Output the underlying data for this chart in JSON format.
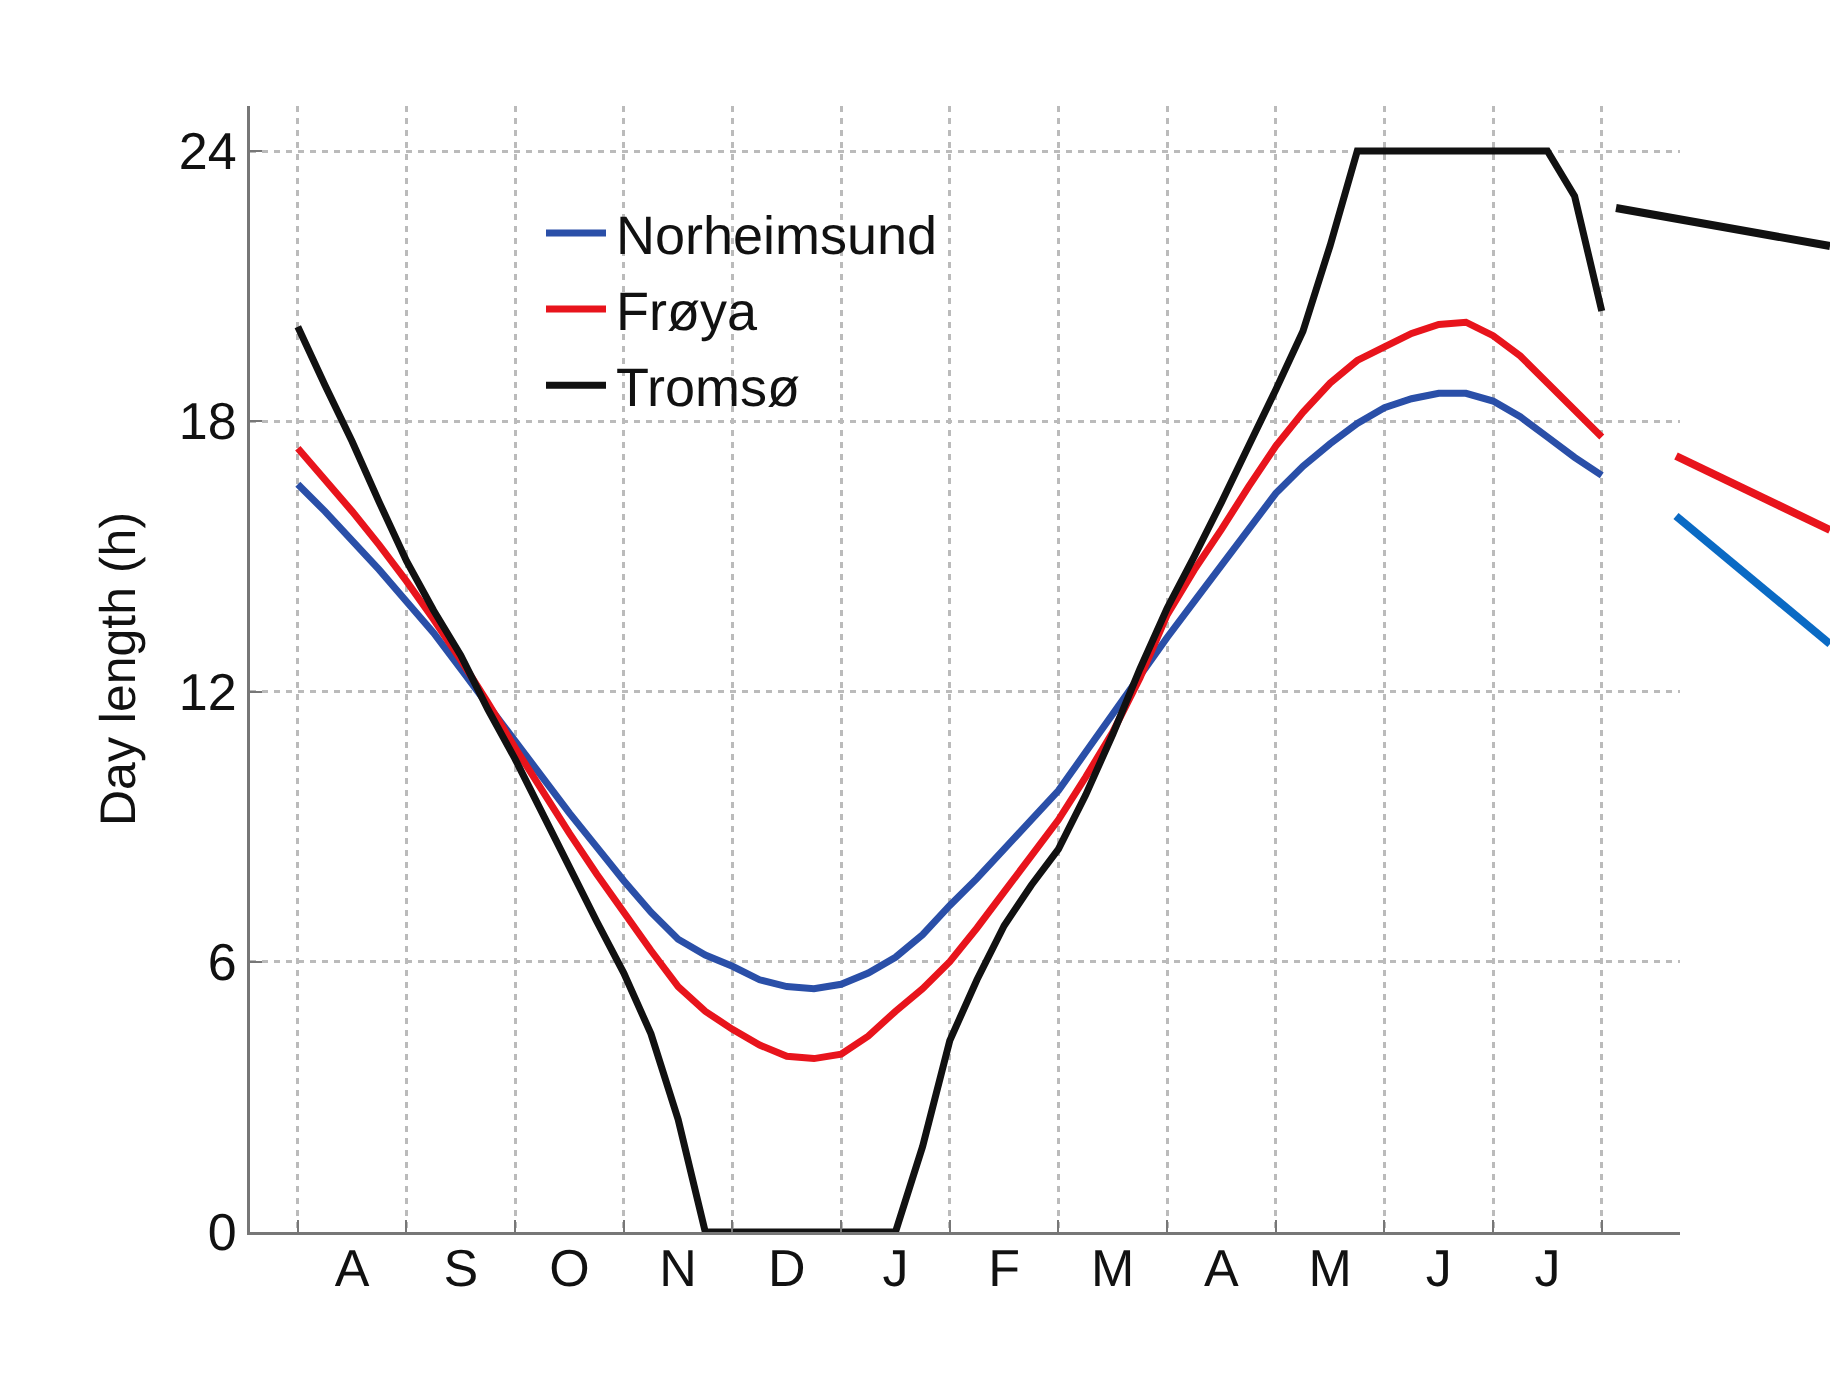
{
  "chart_data": {
    "type": "line",
    "ylabel": "Day length (h)",
    "categories": [
      null,
      null,
      "A",
      null,
      null,
      null,
      "S",
      null,
      null,
      null,
      "O",
      null,
      null,
      null,
      "N",
      null,
      null,
      null,
      "D",
      null,
      null,
      null,
      "J",
      null,
      null,
      null,
      "F",
      null,
      null,
      null,
      "M",
      null,
      null,
      null,
      "A",
      null,
      null,
      null,
      "M",
      null,
      null,
      null,
      "J",
      null,
      null,
      null,
      "J",
      null,
      null
    ],
    "ylim": [
      0,
      25
    ],
    "yticks": [
      0,
      6,
      12,
      18,
      24
    ],
    "grid": true,
    "legend": "top left",
    "marker": "none",
    "line_style": "solid",
    "series": [
      {
        "name": "Norheimsund",
        "color": "#2a4fa8",
        "values": [
          16.6,
          16.0,
          15.35,
          14.7,
          14.0,
          13.3,
          12.5,
          11.7,
          10.9,
          10.1,
          9.3,
          8.55,
          7.8,
          7.1,
          6.5,
          6.15,
          5.9,
          5.6,
          5.45,
          5.4,
          5.5,
          5.75,
          6.1,
          6.6,
          7.25,
          7.85,
          8.5,
          9.15,
          9.8,
          10.65,
          11.5,
          12.35,
          13.2,
          14.0,
          14.8,
          15.6,
          16.4,
          17.0,
          17.5,
          17.95,
          18.3,
          18.5,
          18.62,
          18.62,
          18.45,
          18.1,
          17.65,
          17.2,
          16.8
        ]
      },
      {
        "name": "Frøya",
        "color": "#e8141c",
        "values": [
          17.4,
          16.7,
          16.0,
          15.25,
          14.45,
          13.6,
          12.7,
          11.75,
          10.75,
          9.8,
          8.85,
          7.95,
          7.1,
          6.25,
          5.45,
          4.9,
          4.5,
          4.15,
          3.9,
          3.85,
          3.95,
          4.35,
          4.9,
          5.4,
          6.0,
          6.75,
          7.55,
          8.35,
          9.15,
          10.1,
          11.1,
          12.3,
          13.7,
          14.7,
          15.6,
          16.55,
          17.45,
          18.2,
          18.85,
          19.35,
          19.65,
          19.95,
          20.15,
          20.2,
          19.9,
          19.45,
          18.85,
          18.25,
          17.65
        ]
      },
      {
        "name": "Tromsø",
        "color": "#111111",
        "values": [
          20.1,
          18.8,
          17.55,
          16.2,
          14.9,
          13.8,
          12.8,
          11.6,
          10.5,
          9.3,
          8.1,
          6.9,
          5.75,
          4.4,
          2.5,
          0,
          0,
          0,
          0,
          0,
          0,
          0,
          0,
          1.9,
          4.25,
          5.6,
          6.8,
          7.7,
          8.5,
          9.7,
          11.05,
          12.5,
          13.85,
          15.0,
          16.2,
          17.45,
          18.7,
          20.0,
          21.9,
          24,
          24,
          24,
          24,
          24,
          24,
          24,
          24,
          23.0,
          20.45
        ]
      }
    ]
  }
}
